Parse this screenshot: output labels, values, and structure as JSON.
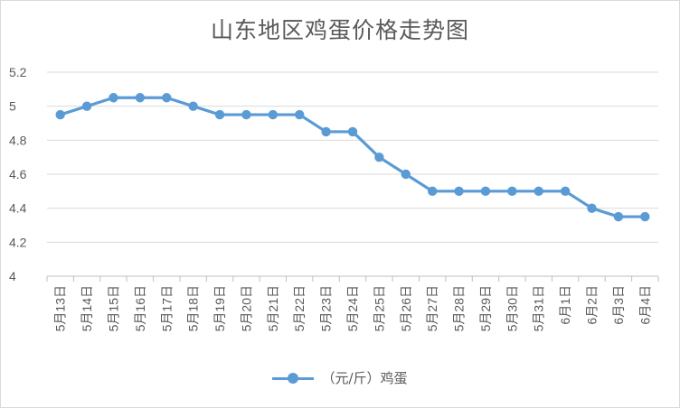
{
  "chart_data": {
    "type": "line",
    "title": "山东地区鸡蛋价格走势图",
    "categories": [
      "5月13日",
      "5月14日",
      "5月15日",
      "5月16日",
      "5月17日",
      "5月18日",
      "5月19日",
      "5月20日",
      "5月21日",
      "5月22日",
      "5月23日",
      "5月24日",
      "5月25日",
      "5月26日",
      "5月27日",
      "5月28日",
      "5月29日",
      "5月30日",
      "5月31日",
      "6月1日",
      "6月2日",
      "6月3日",
      "6月4日"
    ],
    "series": [
      {
        "name": "（元/斤）鸡蛋",
        "values": [
          4.95,
          5.0,
          5.05,
          5.05,
          5.05,
          5.0,
          4.95,
          4.95,
          4.95,
          4.95,
          4.85,
          4.85,
          4.7,
          4.6,
          4.5,
          4.5,
          4.5,
          4.5,
          4.5,
          4.5,
          4.4,
          4.35,
          4.35
        ]
      }
    ],
    "ylim": [
      4,
      5.2
    ],
    "yticks": [
      "4",
      "4.2",
      "4.4",
      "4.6",
      "4.8",
      "5",
      "5.2"
    ],
    "grid": true,
    "legend": "bottom",
    "color": "#5b9bd5"
  }
}
